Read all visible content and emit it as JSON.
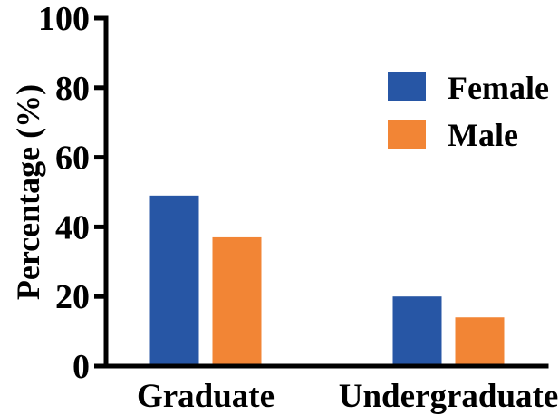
{
  "chart_data": {
    "type": "bar",
    "title": "",
    "xlabel": "",
    "ylabel": "Percentage (%)",
    "ylim": [
      0,
      100
    ],
    "yticks": [
      "0",
      "20",
      "40",
      "60",
      "80",
      "100"
    ],
    "grid": false,
    "legend_position": "top-right",
    "categories": [
      "Graduate",
      "Undergraduate"
    ],
    "series": [
      {
        "name": "Female",
        "color": "#2756A5",
        "values": [
          49,
          20
        ]
      },
      {
        "name": "Male",
        "color": "#F28535",
        "values": [
          37,
          14
        ]
      }
    ]
  }
}
